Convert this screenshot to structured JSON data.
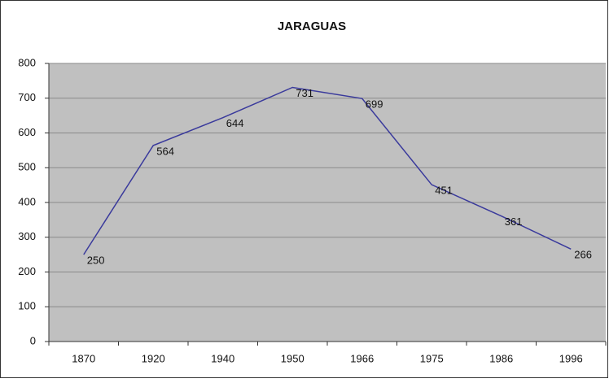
{
  "chart_data": {
    "type": "line",
    "title": "JARAGUAS",
    "categories": [
      "1870",
      "1920",
      "1940",
      "1950",
      "1966",
      "1975",
      "1986",
      "1996"
    ],
    "values": [
      250,
      564,
      644,
      731,
      699,
      451,
      361,
      266
    ],
    "color": "#3a3a9c",
    "ylim": [
      0,
      800
    ],
    "yticks": [
      0,
      100,
      200,
      300,
      400,
      500,
      600,
      700,
      800
    ],
    "grid": true
  }
}
